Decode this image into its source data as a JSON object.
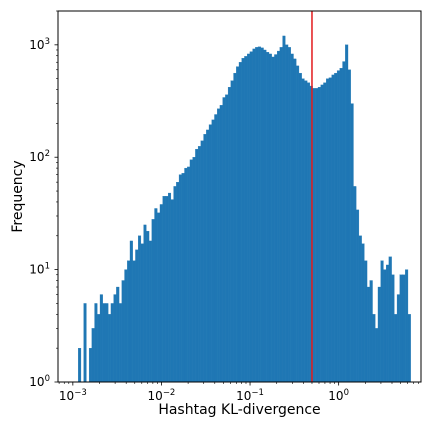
{
  "chart_data": {
    "type": "bar",
    "subtype": "histogram",
    "title": "",
    "xlabel": "Hashtag KL-divergence",
    "ylabel": "Frequency",
    "x_scale": "log",
    "y_scale": "log",
    "xlim": [
      0.00068,
      8.5
    ],
    "ylim": [
      1,
      2000
    ],
    "xticks": [
      {
        "value": 0.001,
        "base": "10",
        "exp": "−3"
      },
      {
        "value": 0.01,
        "base": "10",
        "exp": "−2"
      },
      {
        "value": 0.1,
        "base": "10",
        "exp": "−1"
      },
      {
        "value": 1,
        "base": "10",
        "exp": "0"
      }
    ],
    "yticks": [
      {
        "value": 1,
        "base": "10",
        "exp": "0"
      },
      {
        "value": 10,
        "base": "10",
        "exp": "1"
      },
      {
        "value": 100,
        "base": "10",
        "exp": "2"
      },
      {
        "value": 1000,
        "base": "10",
        "exp": "3"
      }
    ],
    "grid": false,
    "legend": "none",
    "bar_color": "#1f77b4",
    "vline": {
      "x": 0.5,
      "color": "#e31a1c"
    },
    "bin_start": 0.00115,
    "bin_end": 6.5,
    "counts": [
      2,
      1,
      5,
      1,
      2,
      3,
      5,
      4,
      6,
      5,
      5,
      4,
      5,
      6,
      7,
      5,
      8,
      10,
      12,
      18,
      12,
      15,
      20,
      17,
      25,
      22,
      18,
      28,
      35,
      32,
      38,
      45,
      45,
      48,
      42,
      55,
      60,
      70,
      72,
      80,
      82,
      95,
      100,
      118,
      125,
      140,
      160,
      175,
      195,
      215,
      240,
      270,
      290,
      340,
      360,
      420,
      480,
      560,
      640,
      700,
      760,
      790,
      830,
      870,
      920,
      950,
      960,
      940,
      900,
      860,
      830,
      780,
      820,
      880,
      950,
      1200,
      1000,
      950,
      830,
      750,
      650,
      560,
      500,
      480,
      460,
      430,
      410,
      410,
      420,
      440,
      460,
      500,
      510,
      540,
      560,
      590,
      620,
      710,
      1000,
      600,
      300,
      55,
      34,
      20,
      17,
      12,
      7,
      8,
      4,
      3,
      7,
      12,
      10,
      11,
      13,
      9,
      4,
      6,
      9,
      9,
      10,
      4
    ]
  }
}
